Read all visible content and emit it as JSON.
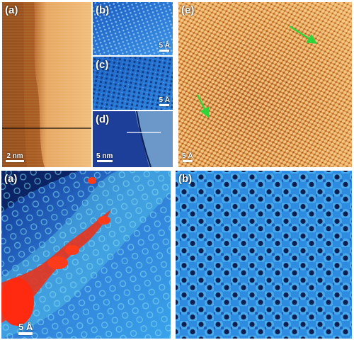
{
  "panels": {
    "a_top": {
      "label": "(a)",
      "scale": "2 nm"
    },
    "b_top": {
      "label": "(b)",
      "scale": "5 Å"
    },
    "c_top": {
      "label": "(c)",
      "scale": "5 Å"
    },
    "d_top": {
      "label": "(d)",
      "scale": "5 nm"
    },
    "e_top": {
      "label": "(e)",
      "scale": "5 Å"
    },
    "a_bottom": {
      "label": "(a)",
      "scale": "5 Å"
    },
    "b_bottom": {
      "label": "(b)"
    }
  },
  "colors": {
    "stm_orange": "#d9893e",
    "stm_blue": "#2f79d6",
    "lattice_dark": "#0a2a6a",
    "highlight_red": "#e8331c",
    "arrow_green": "#2fd43a"
  }
}
